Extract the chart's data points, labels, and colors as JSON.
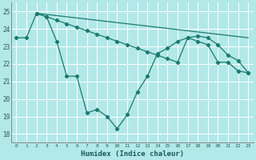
{
  "xlabel": "Humidex (Indice chaleur)",
  "bg_color": "#b2e8e8",
  "grid_color": "#c8f0f0",
  "line_color": "#1a7a6e",
  "ylim": [
    17.5,
    25.5
  ],
  "yticks": [
    18,
    19,
    20,
    21,
    22,
    23,
    24,
    25
  ],
  "xlim": [
    -0.5,
    23.5
  ],
  "xticks": [
    0,
    1,
    2,
    3,
    4,
    5,
    6,
    7,
    8,
    9,
    10,
    11,
    12,
    13,
    14,
    15,
    16,
    17,
    18,
    19,
    20,
    21,
    22,
    23
  ],
  "line1_x": [
    0,
    1,
    2,
    3,
    4,
    5,
    6,
    7,
    8,
    9,
    10,
    11,
    12,
    13,
    14,
    15,
    16,
    17,
    18,
    19,
    20,
    21,
    22,
    23
  ],
  "line1_y": [
    23.5,
    23.5,
    24.9,
    24.7,
    23.3,
    21.3,
    21.3,
    19.2,
    19.4,
    19.0,
    18.3,
    19.1,
    20.4,
    21.3,
    22.6,
    22.9,
    23.3,
    23.5,
    23.3,
    23.1,
    22.1,
    22.1,
    21.6,
    21.5
  ],
  "line2_x": [
    2,
    23
  ],
  "line2_y": [
    24.9,
    23.5
  ],
  "line3_x": [
    2,
    3,
    4,
    5,
    6,
    7,
    8,
    9,
    10,
    11,
    12,
    13,
    14,
    15,
    16,
    17,
    18,
    19,
    20,
    21,
    22,
    23
  ],
  "line3_y": [
    24.9,
    24.7,
    24.5,
    24.3,
    24.1,
    23.9,
    23.7,
    23.5,
    23.3,
    23.1,
    22.9,
    22.7,
    22.5,
    22.3,
    22.1,
    23.5,
    23.6,
    23.5,
    23.1,
    22.5,
    22.2,
    21.5
  ]
}
